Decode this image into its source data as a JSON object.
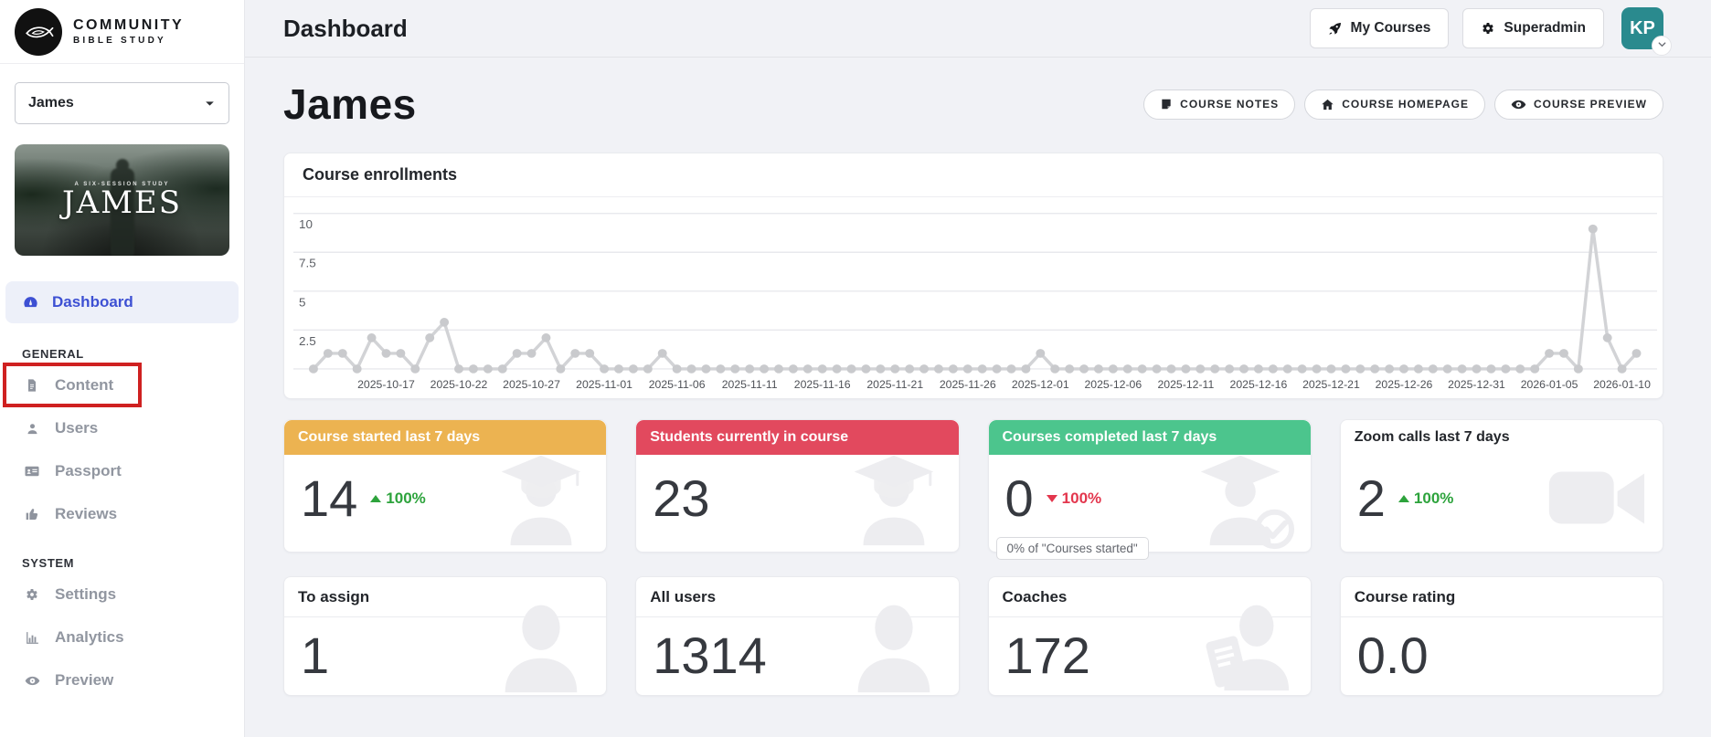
{
  "brand": {
    "line1": "COMMUNITY",
    "line2": "BIBLE STUDY"
  },
  "topbar": {
    "title": "Dashboard",
    "my_courses_label": "My Courses",
    "superadmin_label": "Superadmin",
    "avatar_initials": "KP",
    "avatar_color": "#2a8a8e"
  },
  "sidebar": {
    "course_select_value": "James",
    "course_image": {
      "subtitle": "A SIX-SESSION STUDY",
      "title": "JAMES"
    },
    "dashboard_label": "Dashboard",
    "sections": [
      {
        "label": "GENERAL",
        "items": [
          {
            "label": "Content",
            "icon": "file-icon",
            "highlighted": true
          },
          {
            "label": "Users",
            "icon": "user-icon"
          },
          {
            "label": "Passport",
            "icon": "id-card-icon"
          },
          {
            "label": "Reviews",
            "icon": "thumbs-up-icon"
          }
        ]
      },
      {
        "label": "SYSTEM",
        "items": [
          {
            "label": "Settings",
            "icon": "gear-icon"
          },
          {
            "label": "Analytics",
            "icon": "bar-chart-icon"
          },
          {
            "label": "Preview",
            "icon": "eye-icon"
          }
        ]
      }
    ]
  },
  "page": {
    "heading": "James",
    "actions": [
      {
        "label": "COURSE NOTES",
        "icon": "note-icon"
      },
      {
        "label": "COURSE HOMEPAGE",
        "icon": "home-icon"
      },
      {
        "label": "COURSE PREVIEW",
        "icon": "eye-icon"
      }
    ]
  },
  "chart_data": {
    "type": "line",
    "title": "Course enrollments",
    "ylim": [
      0,
      10
    ],
    "y_ticks": [
      2.5,
      5,
      7.5,
      10
    ],
    "grid": true,
    "line_color": "#d2d3d6",
    "marker_color": "#c9cacd",
    "x_tick_labels": [
      "2025-10-17",
      "2025-10-22",
      "2025-10-27",
      "2025-11-01",
      "2025-11-06",
      "2025-11-11",
      "2025-11-16",
      "2025-11-21",
      "2025-11-26",
      "2025-12-01",
      "2025-12-06",
      "2025-12-11",
      "2025-12-16",
      "2025-12-21",
      "2025-12-26",
      "2025-12-31",
      "2026-01-05",
      "2026-01-10"
    ],
    "tick_first_index": 5,
    "tick_step": 5,
    "values": [
      0,
      1,
      1,
      0,
      2,
      1,
      1,
      0,
      2,
      3,
      0,
      0,
      0,
      0,
      1,
      1,
      2,
      0,
      1,
      1,
      0,
      0,
      0,
      0,
      1,
      0,
      0,
      0,
      0,
      0,
      0,
      0,
      0,
      0,
      0,
      0,
      0,
      0,
      0,
      0,
      0,
      0,
      0,
      0,
      0,
      0,
      0,
      0,
      0,
      0,
      1,
      0,
      0,
      0,
      0,
      0,
      0,
      0,
      0,
      0,
      0,
      0,
      0,
      0,
      0,
      0,
      0,
      0,
      0,
      0,
      0,
      0,
      0,
      0,
      0,
      0,
      0,
      0,
      0,
      0,
      0,
      0,
      0,
      0,
      0,
      1,
      1,
      0,
      9,
      2,
      0,
      1
    ]
  },
  "stat_cards_row1": [
    {
      "title": "Course started last 7 days",
      "header_bg": "#ecb351",
      "value": "14",
      "delta": "100%",
      "delta_dir": "up",
      "icon": "graduate-icon"
    },
    {
      "title": "Students currently in course",
      "header_bg": "#e2495e",
      "value": "23",
      "icon": "graduate-icon"
    },
    {
      "title": "Courses completed last 7 days",
      "header_bg": "#4cc58d",
      "value": "0",
      "delta": "100%",
      "delta_dir": "down",
      "icon": "graduate-check-icon",
      "note": "0% of \"Courses started\""
    },
    {
      "title": "Zoom calls last 7 days",
      "header_bg": "",
      "value": "2",
      "delta": "100%",
      "delta_dir": "up",
      "icon": "video-icon"
    }
  ],
  "stat_cards_row2": [
    {
      "title": "To assign",
      "value": "1",
      "icon": "person-icon"
    },
    {
      "title": "All users",
      "value": "1314",
      "icon": "person-icon"
    },
    {
      "title": "Coaches",
      "value": "172",
      "icon": "coach-icon"
    },
    {
      "title": "Course rating",
      "value": "0.0",
      "icon": ""
    }
  ]
}
